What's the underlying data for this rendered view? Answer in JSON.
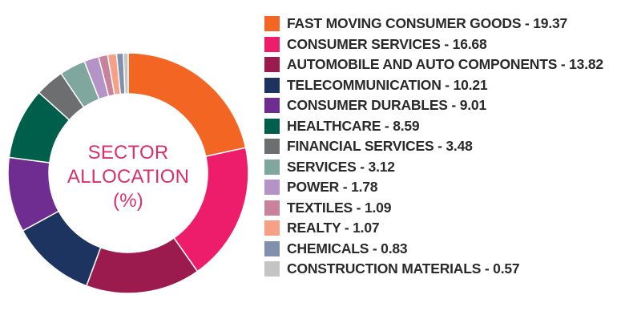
{
  "chart_data": {
    "type": "pie",
    "title": "SECTOR ALLOCATION (%)",
    "center_label": [
      "SECTOR",
      "ALLOCATION",
      "(%)"
    ],
    "legend_position": "right",
    "categories": [
      "FAST MOVING CONSUMER GOODS",
      "CONSUMER SERVICES",
      "AUTOMOBILE AND AUTO COMPONENTS",
      "TELECOMMUNICATION",
      "CONSUMER DURABLES",
      "HEALTHCARE",
      "FINANCIAL SERVICES",
      "SERVICES",
      "POWER",
      "TEXTILES",
      "REALTY",
      "CHEMICALS",
      "CONSTRUCTION MATERIALS"
    ],
    "values": [
      19.37,
      16.68,
      13.82,
      10.21,
      9.01,
      8.59,
      3.48,
      3.12,
      1.78,
      1.09,
      1.07,
      0.83,
      0.57
    ],
    "labels": [
      "FAST MOVING CONSUMER GOODS - 19.37",
      "CONSUMER SERVICES - 16.68",
      "AUTOMOBILE AND AUTO COMPONENTS - 13.82",
      "TELECOMMUNICATION - 10.21",
      "CONSUMER DURABLES - 9.01",
      "HEALTHCARE - 8.59",
      "FINANCIAL SERVICES - 3.48",
      "SERVICES - 3.12",
      "POWER - 1.78",
      "TEXTILES - 1.09",
      "REALTY - 1.07",
      "CHEMICALS - 0.83",
      "CONSTRUCTION MATERIALS - 0.57"
    ],
    "colors": [
      "#f26522",
      "#ee1d6b",
      "#9b1b4f",
      "#1d3461",
      "#6f2c91",
      "#005f4b",
      "#6d6e70",
      "#7fa79d",
      "#b494c7",
      "#c9829b",
      "#f6a086",
      "#8191ad",
      "#c4c4c4"
    ]
  }
}
